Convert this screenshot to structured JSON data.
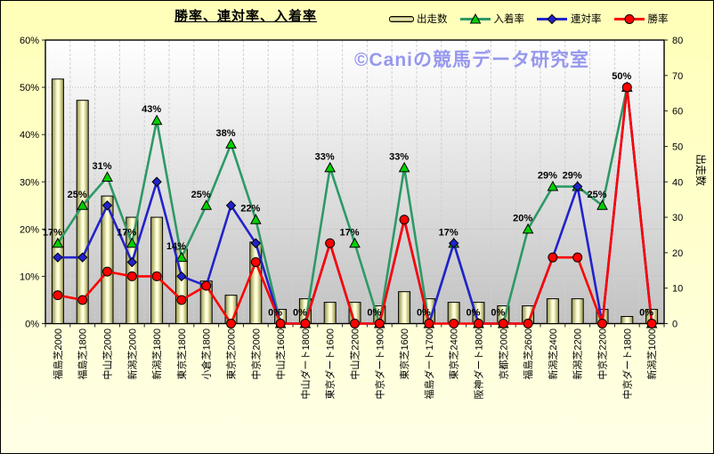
{
  "title": "勝率、連対率、入着率",
  "copyright": "©Caniの競馬データ研究室",
  "colors": {
    "background": "#ffffcc",
    "plot_top": "#ffffff",
    "plot_bottom": "#c2c2c2",
    "bar_edge": "#8f8f44",
    "bar_center": "#ffffd8",
    "place_rate": "#2e9966",
    "place_marker": "#00d200",
    "quinella_rate": "#2222cc",
    "win_rate": "#ff0000",
    "watermark": "#9698ee"
  },
  "chart_data": {
    "type": "bar+line",
    "title": "勝率、連対率、入着率",
    "categories": [
      "福島芝2000",
      "福島芝1800",
      "中山芝2000",
      "新潟芝2000",
      "新潟芝1800",
      "東京芝1800",
      "小倉芝1800",
      "東京芝2000",
      "中京芝2000",
      "中山芝1600",
      "中山ダート1800",
      "東京ダート1600",
      "中山芝2200",
      "中京ダート1900",
      "東京芝1600",
      "福島ダート1700",
      "東京芝2400",
      "阪神ダート1800",
      "京都芝2000",
      "福島芝2600",
      "新潟芝2400",
      "新潟芝2200",
      "中京芝2200",
      "中京ダート1800",
      "新潟芝1000"
    ],
    "series": [
      {
        "name": "出走数",
        "type": "bar",
        "axis": "right",
        "values": [
          69,
          63,
          36,
          30,
          30,
          21,
          12,
          8,
          23,
          4,
          7,
          6,
          6,
          5,
          9,
          7,
          6,
          6,
          5,
          5,
          7,
          7,
          4,
          2,
          4
        ]
      },
      {
        "name": "入着率",
        "type": "line",
        "axis": "left",
        "marker": "triangle",
        "color": "#2e9966",
        "marker_color": "#00d200",
        "show_labels": true,
        "values": [
          17,
          25,
          31,
          17,
          43,
          14,
          25,
          38,
          22,
          0,
          0,
          33,
          17,
          0,
          33,
          0,
          17,
          0,
          0,
          20,
          29,
          29,
          25,
          50,
          0
        ]
      },
      {
        "name": "連対率",
        "type": "line",
        "axis": "left",
        "marker": "diamond",
        "color": "#2222cc",
        "marker_color": "#2222cc",
        "show_labels": false,
        "values": [
          14,
          14,
          25,
          13,
          30,
          10,
          8,
          25,
          17,
          0,
          0,
          17,
          0,
          0,
          22,
          0,
          17,
          0,
          0,
          0,
          14,
          29,
          0,
          50,
          0
        ]
      },
      {
        "name": "勝率",
        "type": "line",
        "axis": "left",
        "marker": "circle",
        "color": "#ff0000",
        "marker_color": "#ff0000",
        "show_labels": false,
        "values": [
          6,
          5,
          11,
          10,
          10,
          5,
          8,
          0,
          13,
          0,
          0,
          17,
          0,
          0,
          22,
          0,
          0,
          0,
          0,
          0,
          14,
          14,
          0,
          50,
          0
        ]
      }
    ],
    "data_labels": [
      "17%",
      "25%",
      "31%",
      "17%",
      "43%",
      "14%",
      "25%",
      "38%",
      "22%",
      "0%",
      "0%",
      "33%",
      "17%",
      "0%",
      "33%",
      "0%",
      "17%",
      "0%",
      "0%",
      "20%",
      "29%",
      "29%",
      "25%",
      "50%",
      "0%"
    ],
    "left_axis": {
      "min": 0,
      "max": 60,
      "step": 10,
      "suffix": "%",
      "tick_labels": [
        "0%",
        "10%",
        "20%",
        "30%",
        "40%",
        "50%",
        "60%"
      ]
    },
    "right_axis": {
      "min": 0,
      "max": 80,
      "step": 10,
      "title": "出走数",
      "tick_labels": [
        "0",
        "10",
        "20",
        "30",
        "40",
        "50",
        "60",
        "70",
        "80"
      ]
    },
    "legend_position": "top-right",
    "grid": true
  }
}
